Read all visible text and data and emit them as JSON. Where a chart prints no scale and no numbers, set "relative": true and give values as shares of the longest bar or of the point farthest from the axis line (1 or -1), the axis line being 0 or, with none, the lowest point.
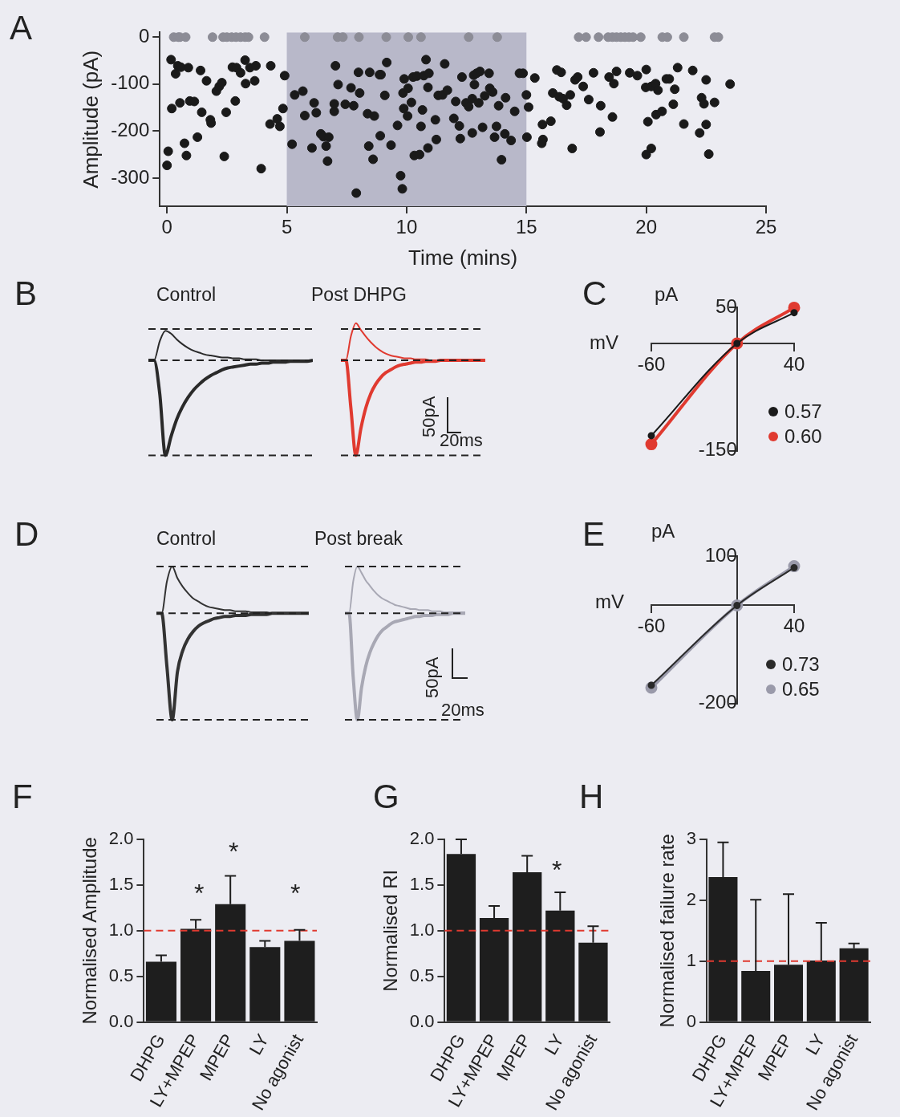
{
  "chart_data": [
    {
      "type": "scatter",
      "xlabel": "Time (mins)",
      "ylabel": "Amplitude (pA)",
      "annotations": [
        "A"
      ],
      "xlim": [
        -0.3,
        25
      ],
      "xticks": [
        0,
        5,
        10,
        15,
        20,
        25
      ],
      "ylim": [
        -360,
        10
      ],
      "yticks": [
        0,
        -100,
        -200,
        -300
      ],
      "marker": "circle",
      "bands": [
        {
          "axis": "x",
          "from": 5,
          "to": 15,
          "color": "#b8b8c9"
        }
      ],
      "series": [
        {
          "color": "#8c8c96",
          "x": [
            0.28,
            0.47,
            0.54,
            0.78,
            1.9,
            2.34,
            2.5,
            2.7,
            2.88,
            3.07,
            3.26,
            3.4,
            4.07,
            5.75,
            7.12,
            7.34,
            8.01,
            9.15,
            10.07,
            10.6,
            12.59,
            13.78,
            17.18,
            17.49,
            18.01,
            18.41,
            18.59,
            18.76,
            18.94,
            19.11,
            19.28,
            19.45,
            19.77,
            20.67,
            20.88,
            21.57,
            22.85,
            23.01
          ],
          "values": [
            0,
            0,
            0,
            0,
            0,
            0,
            0,
            0,
            0,
            0,
            0,
            0,
            0,
            0,
            0,
            0,
            0,
            0,
            0,
            0,
            0,
            0,
            0,
            0,
            0,
            0,
            0,
            0,
            0,
            0,
            0,
            0,
            0,
            0,
            0,
            0,
            0,
            0
          ]
        },
        {
          "color": "#1a1a1a",
          "x": [
            0,
            0.05,
            0.17,
            0.2,
            0.36,
            0.45,
            0.58,
            0.54,
            0.73,
            0.81,
            0.89,
            0.95,
            1.14,
            1.27,
            1.4,
            1.45,
            1.65,
            1.81,
            1.84,
            2.06,
            2.18,
            2.29,
            2.39,
            2.47,
            2.73,
            2.85,
            2.9,
            3.07,
            3.26,
            3.28,
            3.46,
            3.66,
            3.71,
            3.93,
            4.3,
            4.33,
            4.6,
            4.71,
            4.84,
            4.91,
            5.22,
            5.33,
            5.67,
            5.75,
            6.05,
            6.14,
            6.23,
            6.42,
            6.53,
            6.75,
            6.64,
            6.7,
            6.98,
            6.98,
            7.03,
            7.14,
            7.44,
            7.68,
            7.79,
            7.9,
            7.99,
            8.04,
            8.37,
            8.46,
            8.42,
            8.65,
            8.6,
            8.87,
            8.93,
            8.9,
            9.09,
            9.17,
            9.35,
            9.62,
            9.75,
            9.82,
            9.85,
            9.88,
            9.9,
            10.04,
            10.06,
            10.2,
            10.27,
            10.32,
            10.43,
            10.54,
            10.6,
            10.66,
            10.72,
            10.81,
            10.93,
            10.89,
            10.89,
            11.2,
            11.24,
            11.32,
            11.59,
            11.5,
            11.7,
            12.05,
            11.97,
            12.2,
            12.24,
            12.31,
            12.48,
            12.59,
            12.74,
            12.74,
            12.8,
            12.83,
            12.92,
            13.06,
            13.01,
            13.17,
            13.26,
            13.44,
            13.47,
            13.59,
            13.67,
            13.75,
            13.84,
            13.96,
            14.13,
            14.1,
            14.36,
            14.51,
            14.71,
            14.86,
            15.0,
            15.09,
            15.02,
            15.35,
            15.67,
            15.69,
            15.64,
            16.02,
            16.1,
            16.27,
            16.45,
            16.37,
            16.53,
            16.68,
            16.83,
            16.91,
            17.03,
            17.14,
            17.37,
            17.6,
            17.8,
            18.1,
            18.07,
            18.45,
            18.65,
            18.59,
            18.76,
            19.31,
            19.63,
            20.0,
            19.98,
            20.07,
            20.0,
            20.21,
            20.21,
            20.39,
            20.41,
            20.66,
            20.49,
            20.84,
            20.96,
            21.13,
            21.19,
            21.31,
            21.57,
            21.94,
            22.23,
            22.31,
            22.41,
            22.5,
            22.5,
            22.61,
            22.85,
            23.5
          ],
          "values": [
            -273,
            -243,
            -48,
            -152,
            -78,
            -61,
            -64,
            -140,
            -226,
            -252,
            -65,
            -136,
            -137,
            -213,
            -71,
            -160,
            -93,
            -176,
            -183,
            -115,
            -105,
            -97,
            -254,
            -160,
            -64,
            -136,
            -65,
            -76,
            -49,
            -99,
            -65,
            -93,
            -61,
            -280,
            -185,
            -61,
            -174,
            -190,
            -152,
            -82,
            -228,
            -123,
            -115,
            -167,
            -236,
            -140,
            -161,
            -206,
            -212,
            -213,
            -232,
            -264,
            -158,
            -142,
            -61,
            -101,
            -143,
            -108,
            -146,
            -332,
            -75,
            -119,
            -163,
            -75,
            -232,
            -168,
            -260,
            -80,
            -80,
            -210,
            -124,
            -54,
            -230,
            -188,
            -295,
            -323,
            -119,
            -152,
            -89,
            -168,
            -109,
            -139,
            -85,
            -252,
            -83,
            -250,
            -190,
            -155,
            -82,
            -48,
            -77,
            -107,
            -236,
            -176,
            -218,
            -124,
            -57,
            -123,
            -113,
            -137,
            -173,
            -189,
            -216,
            -85,
            -140,
            -148,
            -204,
            -131,
            -81,
            -101,
            -77,
            -73,
            -140,
            -192,
            -125,
            -77,
            -109,
            -117,
            -213,
            -190,
            -146,
            -261,
            -129,
            -206,
            -220,
            -158,
            -77,
            -77,
            -123,
            -149,
            -213,
            -87,
            -186,
            -218,
            -226,
            -179,
            -119,
            -70,
            -75,
            -127,
            -131,
            -145,
            -123,
            -237,
            -91,
            -85,
            -105,
            -133,
            -76,
            -146,
            -202,
            -85,
            -99,
            -170,
            -73,
            -76,
            -82,
            -69,
            -107,
            -180,
            -250,
            -237,
            -105,
            -99,
            -165,
            -158,
            -113,
            -89,
            -89,
            -143,
            -111,
            -65,
            -185,
            -71,
            -204,
            -129,
            -142,
            -91,
            -186,
            -249,
            -139,
            -100
          ]
        }
      ]
    },
    {
      "type": "line",
      "title": "Control",
      "relative": true,
      "annotations": [
        "B"
      ],
      "marker": "none",
      "categories": [
        null,
        null,
        null,
        null,
        null,
        null,
        null,
        null,
        null,
        null,
        null,
        null,
        null,
        null,
        null,
        null,
        null,
        null,
        null,
        null,
        null,
        null,
        null,
        null,
        null,
        null,
        null,
        null,
        null,
        null
      ],
      "ref_lines": [
        {
          "axis": "y",
          "value": 0.33,
          "color": "#222222",
          "line_style": "dashed"
        },
        {
          "axis": "y",
          "value": 0,
          "color": "#222222",
          "line_style": "dashed"
        },
        {
          "axis": "y",
          "value": -1,
          "color": "#222222",
          "line_style": "dashed"
        }
      ],
      "series": [
        {
          "color": "#2a2a2a",
          "values": [
            0,
            0,
            0.2,
            0.31,
            0.28,
            0.22,
            0.17,
            0.13,
            0.1,
            0.08,
            0.06,
            0.05,
            0.04,
            0.03,
            0.03,
            0.02,
            0.02,
            0.01,
            0.01,
            0.01,
            0,
            0,
            0,
            0,
            0,
            0,
            0,
            0,
            0,
            0
          ]
        },
        {
          "color": "#2a2a2a",
          "values": [
            0,
            0,
            -0.35,
            -1,
            -0.8,
            -0.62,
            -0.49,
            -0.39,
            -0.31,
            -0.25,
            -0.2,
            -0.16,
            -0.13,
            -0.1,
            -0.08,
            -0.07,
            -0.06,
            -0.05,
            -0.04,
            -0.04,
            -0.03,
            -0.03,
            -0.02,
            -0.02,
            -0.02,
            -0.01,
            -0.01,
            -0.01,
            -0.01,
            0
          ]
        }
      ]
    },
    {
      "type": "line",
      "title": "Post DHPG",
      "relative": true,
      "annotations": [
        "50pA",
        "20ms"
      ],
      "marker": "none",
      "categories": [
        null,
        null,
        null,
        null,
        null,
        null,
        null,
        null,
        null,
        null,
        null,
        null,
        null,
        null,
        null,
        null,
        null,
        null,
        null,
        null,
        null,
        null,
        null,
        null,
        null,
        null,
        null,
        null,
        null,
        null
      ],
      "ref_lines": [
        {
          "axis": "y",
          "value": 0.33,
          "color": "#222222",
          "line_style": "dashed"
        },
        {
          "axis": "y",
          "value": 0,
          "color": "#222222",
          "line_style": "dashed"
        },
        {
          "axis": "y",
          "value": -1,
          "color": "#222222",
          "line_style": "dashed"
        }
      ],
      "series": [
        {
          "color": "#e03a30",
          "values": [
            0,
            0,
            0.25,
            0.39,
            0.32,
            0.25,
            0.19,
            0.14,
            0.1,
            0.07,
            0.05,
            0.04,
            0.03,
            0.02,
            0.02,
            0.01,
            0.01,
            0.01,
            0,
            0,
            0,
            0,
            0,
            0,
            0,
            0,
            0,
            0,
            0,
            0
          ]
        },
        {
          "color": "#e03a30",
          "values": [
            0,
            0,
            -0.5,
            -1,
            -0.72,
            -0.5,
            -0.35,
            -0.25,
            -0.18,
            -0.13,
            -0.1,
            -0.07,
            -0.05,
            -0.04,
            -0.03,
            -0.02,
            -0.02,
            -0.01,
            -0.01,
            -0.01,
            0,
            0,
            0,
            0,
            0,
            0,
            0,
            0,
            0,
            0
          ]
        }
      ]
    },
    {
      "type": "line",
      "xlabel": "mV",
      "ylabel": "pA",
      "annotations": [
        "C"
      ],
      "xlim": [
        -60,
        40
      ],
      "xticks": [
        -60,
        40
      ],
      "ylim": [
        -150,
        50
      ],
      "yticks": [
        50,
        -150
      ],
      "marker": "circle",
      "legend": "bottom right",
      "series": [
        {
          "name": "0.57",
          "color": "#1a1a1a",
          "x": [
            -60,
            0,
            40
          ],
          "values": [
            -129,
            0,
            43
          ]
        },
        {
          "name": "0.60",
          "color": "#e03a30",
          "x": [
            -60,
            0,
            40
          ],
          "values": [
            -141,
            0,
            50
          ]
        }
      ]
    },
    {
      "type": "line",
      "title": "Control",
      "relative": true,
      "annotations": [
        "D"
      ],
      "marker": "none",
      "categories": [
        null,
        null,
        null,
        null,
        null,
        null,
        null,
        null,
        null,
        null,
        null,
        null,
        null,
        null,
        null,
        null,
        null,
        null,
        null,
        null,
        null,
        null,
        null,
        null,
        null,
        null,
        null,
        null,
        null,
        null
      ],
      "ref_lines": [
        {
          "axis": "y",
          "value": 0.44,
          "color": "#222222",
          "line_style": "dashed"
        },
        {
          "axis": "y",
          "value": 0,
          "color": "#222222",
          "line_style": "dashed"
        },
        {
          "axis": "y",
          "value": -1,
          "color": "#222222",
          "line_style": "dashed"
        }
      ],
      "series": [
        {
          "color": "#333333",
          "values": [
            0,
            0,
            0.3,
            0.44,
            0.33,
            0.25,
            0.19,
            0.14,
            0.11,
            0.08,
            0.06,
            0.05,
            0.04,
            0.03,
            0.03,
            0.02,
            0.02,
            0.02,
            0.01,
            0.01,
            0.01,
            0.01,
            0,
            0,
            0,
            0,
            0,
            0,
            0,
            0
          ]
        },
        {
          "color": "#333333",
          "values": [
            0,
            0,
            -0.5,
            -1,
            -0.55,
            -0.35,
            -0.24,
            -0.17,
            -0.12,
            -0.09,
            -0.07,
            -0.05,
            -0.04,
            -0.03,
            -0.03,
            -0.02,
            -0.02,
            -0.02,
            -0.01,
            -0.01,
            -0.01,
            -0.01,
            0,
            0,
            0,
            0,
            0,
            0,
            0,
            0
          ]
        }
      ]
    },
    {
      "type": "line",
      "title": "Post break",
      "relative": true,
      "annotations": [
        "50pA",
        "20ms"
      ],
      "marker": "none",
      "categories": [
        null,
        null,
        null,
        null,
        null,
        null,
        null,
        null,
        null,
        null,
        null,
        null,
        null,
        null,
        null,
        null,
        null,
        null,
        null,
        null,
        null,
        null,
        null,
        null,
        null,
        null,
        null,
        null,
        null,
        null
      ],
      "ref_lines": [
        {
          "axis": "y",
          "value": 0.44,
          "color": "#222222",
          "line_style": "dashed"
        },
        {
          "axis": "y",
          "value": 0,
          "color": "#222222",
          "line_style": "dashed"
        },
        {
          "axis": "y",
          "value": -1,
          "color": "#222222",
          "line_style": "dashed"
        }
      ],
      "series": [
        {
          "color": "#a8a8b4",
          "values": [
            0,
            0,
            0.3,
            0.44,
            0.38,
            0.31,
            0.26,
            0.21,
            0.17,
            0.14,
            0.12,
            0.1,
            0.08,
            0.07,
            0.06,
            0.05,
            0.04,
            0.04,
            0.03,
            0.03,
            0.03,
            0.02,
            0.02,
            0.02,
            0.01,
            0.01,
            0.01,
            0.01,
            0.01,
            0.01
          ]
        },
        {
          "color": "#a8a8b4",
          "values": [
            0,
            0,
            -0.6,
            -1,
            -0.7,
            -0.5,
            -0.37,
            -0.28,
            -0.21,
            -0.16,
            -0.13,
            -0.1,
            -0.08,
            -0.07,
            -0.06,
            -0.05,
            -0.04,
            -0.03,
            -0.03,
            -0.02,
            -0.02,
            -0.02,
            -0.01,
            -0.01,
            -0.01,
            -0.01,
            0,
            0,
            0,
            0
          ]
        }
      ]
    },
    {
      "type": "line",
      "xlabel": "mV",
      "ylabel": "pA",
      "annotations": [
        "E"
      ],
      "xlim": [
        -60,
        40
      ],
      "xticks": [
        -60,
        40
      ],
      "ylim": [
        -200,
        100
      ],
      "yticks": [
        100,
        -200
      ],
      "marker": "circle",
      "legend": "bottom right",
      "series": [
        {
          "name": "0.73",
          "color": "#2a2a2a",
          "x": [
            -60,
            0,
            40
          ],
          "values": [
            -163,
            0,
            77
          ]
        },
        {
          "name": "0.65",
          "color": "#9a9aaa",
          "x": [
            -60,
            0,
            40
          ],
          "values": [
            -168,
            0,
            80
          ]
        }
      ]
    },
    {
      "type": "bar",
      "ylabel": "Normalised Amplitude",
      "categories": [
        "DHPG",
        "LY+MPEP",
        "MPEP",
        "LY",
        "No agonist"
      ],
      "values": [
        0.66,
        1.02,
        1.29,
        0.82,
        0.89
      ],
      "color": "#1e1e1e",
      "errors": [
        [
          0.66,
          0.73
        ],
        [
          1.02,
          1.12
        ],
        [
          1.29,
          1.6
        ],
        [
          0.82,
          0.89
        ],
        [
          0.89,
          1.01
        ]
      ],
      "ylim": [
        0,
        2
      ],
      "yticks": [
        {
          "value": 0,
          "label": "0.0"
        },
        0.5,
        {
          "value": 1,
          "label": "1.0"
        },
        1.5,
        {
          "value": 2,
          "label": "2.0"
        }
      ],
      "ref_lines": [
        {
          "axis": "y",
          "value": 1,
          "color": "#e03a30",
          "line_style": "dashed"
        }
      ],
      "annotations": [
        "F",
        "*",
        "*",
        "*"
      ]
    },
    {
      "type": "bar",
      "ylabel": "Normalised RI",
      "categories": [
        "DHPG",
        "LY+MPEP",
        "MPEP",
        "LY",
        "No agonist"
      ],
      "values": [
        1.84,
        1.14,
        1.64,
        1.22,
        0.87
      ],
      "color": "#1e1e1e",
      "errors": [
        [
          1.84,
          2.0
        ],
        [
          1.14,
          1.27
        ],
        [
          1.64,
          1.82
        ],
        [
          1.22,
          1.42
        ],
        [
          0.87,
          1.05
        ]
      ],
      "ylim": [
        0,
        2
      ],
      "yticks": [
        {
          "value": 0,
          "label": "0.0"
        },
        0.5,
        {
          "value": 1,
          "label": "1.0"
        },
        1.5,
        {
          "value": 2,
          "label": "2.0"
        }
      ],
      "ref_lines": [
        {
          "axis": "y",
          "value": 1,
          "color": "#e03a30",
          "line_style": "dashed"
        }
      ],
      "annotations": [
        "G",
        "*"
      ]
    },
    {
      "type": "bar",
      "ylabel": "Normalised failure rate",
      "categories": [
        "DHPG",
        "LY+MPEP",
        "MPEP",
        "LY",
        "No agonist"
      ],
      "values": [
        2.38,
        0.84,
        0.94,
        1.01,
        1.21
      ],
      "color": "#1e1e1e",
      "errors": [
        [
          2.38,
          2.95
        ],
        [
          0.84,
          2.01
        ],
        [
          0.94,
          2.1
        ],
        [
          1.01,
          1.63
        ],
        [
          1.21,
          1.29
        ]
      ],
      "ylim": [
        0,
        3
      ],
      "yticks": [
        0,
        1,
        2,
        3
      ],
      "ref_lines": [
        {
          "axis": "y",
          "value": 1,
          "color": "#e03a30",
          "line_style": "dashed"
        }
      ],
      "annotations": [
        "H"
      ]
    }
  ]
}
